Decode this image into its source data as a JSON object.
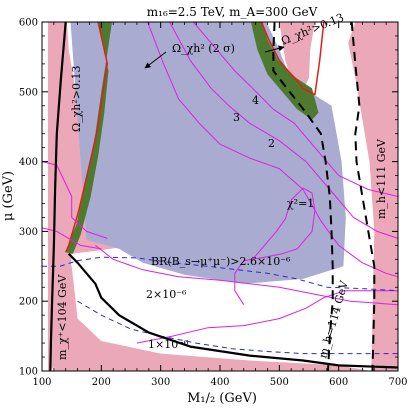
{
  "chart_data": {
    "type": "contour",
    "title": "m₁₆=2.5 TeV,  m_A=300 GeV",
    "xlabel": "M₁/₂ (GeV)",
    "ylabel": "μ (GeV)",
    "xlim": [
      100,
      700
    ],
    "ylim": [
      100,
      600
    ],
    "xticks": [
      100,
      200,
      300,
      400,
      500,
      600,
      700
    ],
    "yticks": [
      100,
      200,
      300,
      400,
      500,
      600
    ],
    "xtick_labels": [
      "100",
      "200",
      "300",
      "400",
      "500",
      "600",
      "700"
    ],
    "ytick_labels": [
      "100",
      "200",
      "300",
      "400",
      "500",
      "600"
    ],
    "colors": {
      "excluded": "#eba8b8",
      "bs_excluded": "#a9abd1",
      "relic": "#4d7a2e",
      "relic_edge": "#e0201a",
      "chi2": "#e020e0",
      "bs_contour": "#2a2ad0",
      "bound": "#000000"
    },
    "regions": {
      "left_excluded": [
        [
          110,
          600
        ],
        [
          142,
          600
        ],
        [
          145,
          560
        ],
        [
          165,
          460
        ],
        [
          190,
          380
        ],
        [
          230,
          315
        ],
        [
          262,
          290
        ],
        [
          240,
          278
        ],
        [
          190,
          272
        ],
        [
          150,
          268
        ],
        [
          145,
          200
        ],
        [
          130,
          110
        ],
        [
          110,
          100
        ]
      ],
      "right_excluded": [
        [
          628,
          600
        ],
        [
          700,
          600
        ],
        [
          700,
          100
        ],
        [
          655,
          100
        ],
        [
          657,
          180
        ],
        [
          660,
          300
        ],
        [
          652,
          400
        ],
        [
          628,
          520
        ],
        [
          616,
          570
        ]
      ],
      "top_excluded": [
        [
          500,
          600
        ],
        [
          560,
          600
        ],
        [
          552,
          560
        ],
        [
          550,
          520
        ],
        [
          540,
          502
        ],
        [
          522,
          515
        ],
        [
          510,
          545
        ]
      ],
      "bottom_excluded": [
        [
          120,
          100
        ],
        [
          655,
          100
        ],
        [
          600,
          108
        ],
        [
          450,
          115
        ],
        [
          300,
          125
        ],
        [
          200,
          143
        ],
        [
          160,
          175
        ],
        [
          150,
          250
        ],
        [
          140,
          268
        ],
        [
          120,
          270
        ]
      ],
      "bs_excluded": [
        [
          148,
          600
        ],
        [
          478,
          600
        ],
        [
          500,
          560
        ],
        [
          520,
          515
        ],
        [
          548,
          500
        ],
        [
          560,
          495
        ],
        [
          588,
          480
        ],
        [
          605,
          400
        ],
        [
          612,
          320
        ],
        [
          608,
          250
        ],
        [
          540,
          232
        ],
        [
          440,
          225
        ],
        [
          340,
          238
        ],
        [
          270,
          255
        ],
        [
          230,
          275
        ],
        [
          175,
          288
        ]
      ],
      "relic_green_left": [
        [
          193,
          600
        ],
        [
          218,
          600
        ],
        [
          210,
          555
        ],
        [
          200,
          500
        ],
        [
          190,
          440
        ],
        [
          175,
          375
        ],
        [
          158,
          310
        ],
        [
          146,
          285
        ],
        [
          140,
          270
        ],
        [
          152,
          268
        ],
        [
          165,
          295
        ],
        [
          182,
          350
        ],
        [
          195,
          410
        ],
        [
          205,
          470
        ],
        [
          212,
          530
        ]
      ],
      "relic_green_right": [
        [
          452,
          600
        ],
        [
          472,
          600
        ],
        [
          480,
          575
        ],
        [
          498,
          545
        ],
        [
          528,
          520
        ],
        [
          555,
          505
        ],
        [
          566,
          470
        ],
        [
          555,
          460
        ],
        [
          530,
          475
        ],
        [
          505,
          500
        ],
        [
          480,
          525
        ],
        [
          463,
          560
        ]
      ]
    },
    "curves": {
      "relic_red_left": [
        [
          195,
          600
        ],
        [
          210,
          540
        ],
        [
          192,
          440
        ],
        [
          162,
          330
        ],
        [
          145,
          280
        ],
        [
          140,
          270
        ]
      ],
      "relic_red_right": [
        [
          470,
          600
        ],
        [
          482,
          575
        ],
        [
          500,
          545
        ],
        [
          540,
          505
        ],
        [
          560,
          496
        ],
        [
          568,
          545
        ],
        [
          575,
          600
        ]
      ],
      "chi2_4": [
        [
          355,
          600
        ],
        [
          395,
          560
        ],
        [
          425,
          530
        ],
        [
          455,
          505
        ],
        [
          490,
          475
        ],
        [
          525,
          455
        ],
        [
          560,
          420
        ],
        [
          600,
          380
        ],
        [
          650,
          360
        ],
        [
          700,
          350
        ]
      ],
      "chi2_3": [
        [
          315,
          600
        ],
        [
          350,
          545
        ],
        [
          385,
          505
        ],
        [
          415,
          480
        ],
        [
          450,
          455
        ],
        [
          500,
          430
        ],
        [
          545,
          400
        ],
        [
          585,
          360
        ],
        [
          625,
          320
        ],
        [
          665,
          300
        ],
        [
          700,
          290
        ]
      ],
      "chi2_2": [
        [
          278,
          600
        ],
        [
          305,
          540
        ],
        [
          330,
          490
        ],
        [
          365,
          455
        ],
        [
          400,
          425
        ],
        [
          450,
          405
        ],
        [
          500,
          390
        ],
        [
          540,
          360
        ],
        [
          570,
          315
        ],
        [
          600,
          280
        ],
        [
          640,
          255
        ],
        [
          680,
          240
        ],
        [
          700,
          235
        ]
      ],
      "chi2_1": [
        [
          440,
          195
        ],
        [
          425,
          215
        ],
        [
          425,
          240
        ],
        [
          440,
          258
        ],
        [
          475,
          263
        ],
        [
          505,
          268
        ],
        [
          530,
          275
        ],
        [
          555,
          300
        ],
        [
          560,
          330
        ],
        [
          555,
          355
        ],
        [
          540,
          362
        ],
        [
          520,
          345
        ],
        [
          510,
          318
        ],
        [
          495,
          300
        ],
        [
          475,
          280
        ],
        [
          455,
          260
        ]
      ],
      "chi2_outer_a": [
        [
          260,
          140
        ],
        [
          320,
          150
        ],
        [
          380,
          162
        ],
        [
          440,
          165
        ],
        [
          500,
          175
        ],
        [
          545,
          190
        ],
        [
          575,
          205
        ],
        [
          610,
          215
        ],
        [
          650,
          215
        ],
        [
          700,
          215
        ]
      ],
      "chi2_outer_b": [
        [
          190,
          280
        ],
        [
          220,
          260
        ],
        [
          270,
          245
        ],
        [
          330,
          235
        ],
        [
          400,
          230
        ],
        [
          450,
          225
        ],
        [
          500,
          220
        ],
        [
          560,
          210
        ],
        [
          620,
          200
        ],
        [
          700,
          195
        ]
      ],
      "chi2_left_a": [
        [
          100,
          400
        ],
        [
          125,
          395
        ],
        [
          150,
          350
        ],
        [
          150,
          320
        ],
        [
          175,
          300
        ],
        [
          210,
          290
        ]
      ],
      "chi2_left_b": [
        [
          100,
          305
        ],
        [
          125,
          300
        ],
        [
          145,
          290
        ],
        [
          165,
          280
        ],
        [
          200,
          275
        ]
      ],
      "bs_2e6": [
        [
          100,
          250
        ],
        [
          130,
          250
        ],
        [
          160,
          258
        ],
        [
          200,
          263
        ],
        [
          260,
          262
        ],
        [
          320,
          255
        ],
        [
          380,
          250
        ],
        [
          430,
          245
        ],
        [
          480,
          240
        ],
        [
          530,
          232
        ],
        [
          580,
          220
        ],
        [
          640,
          218
        ],
        [
          700,
          215
        ]
      ],
      "bs_1e6": [
        [
          160,
          200
        ],
        [
          200,
          180
        ],
        [
          250,
          160
        ],
        [
          300,
          150
        ],
        [
          360,
          140
        ],
        [
          420,
          132
        ],
        [
          480,
          128
        ],
        [
          540,
          125
        ],
        [
          600,
          125
        ],
        [
          700,
          125
        ]
      ],
      "mh_114": [
        [
          492,
          600
        ],
        [
          490,
          560
        ],
        [
          490,
          530
        ],
        [
          545,
          470
        ],
        [
          570,
          440
        ],
        [
          578,
          400
        ],
        [
          585,
          350
        ],
        [
          588,
          300
        ],
        [
          590,
          250
        ],
        [
          590,
          200
        ],
        [
          585,
          150
        ],
        [
          582,
          100
        ]
      ],
      "mh_111": [
        [
          622,
          600
        ],
        [
          628,
          540
        ],
        [
          635,
          480
        ],
        [
          628,
          440
        ],
        [
          630,
          400
        ],
        [
          640,
          350
        ],
        [
          650,
          300
        ],
        [
          660,
          250
        ],
        [
          660,
          200
        ],
        [
          657,
          100
        ]
      ],
      "mchi_104": [
        [
          140,
          600
        ],
        [
          132,
          520
        ],
        [
          125,
          440
        ],
        [
          122,
          360
        ],
        [
          120,
          280
        ],
        [
          117,
          200
        ],
        [
          115,
          140
        ],
        [
          114,
          100
        ]
      ],
      "bs_bound": [
        [
          145,
          268
        ],
        [
          160,
          255
        ],
        [
          175,
          240
        ],
        [
          190,
          225
        ],
        [
          200,
          205
        ],
        [
          230,
          180
        ],
        [
          280,
          155
        ],
        [
          350,
          135
        ],
        [
          450,
          122
        ],
        [
          540,
          115
        ],
        [
          600,
          108
        ],
        [
          700,
          105
        ]
      ]
    },
    "annotations": {
      "relic_upper_left": "Ω_χh²>0.13",
      "relic_upper_right": "Ω_χh²>0.13",
      "relic_band": "Ω_χh² (2 σ)",
      "chi2_4": "4",
      "chi2_3": "3",
      "chi2_2": "2",
      "chi2_1": "χ²=1",
      "bs_limit": "BR(B_s→μ⁺μ⁻)>2.6×10⁻⁶",
      "bs_2e6": "2×10⁻⁶",
      "bs_1e6": "1×10⁻⁶",
      "mchi": "m_χ⁺<104 GeV",
      "mh_114": "m_h=114 GeV",
      "mh_111": "m_h<111 GeV"
    }
  }
}
